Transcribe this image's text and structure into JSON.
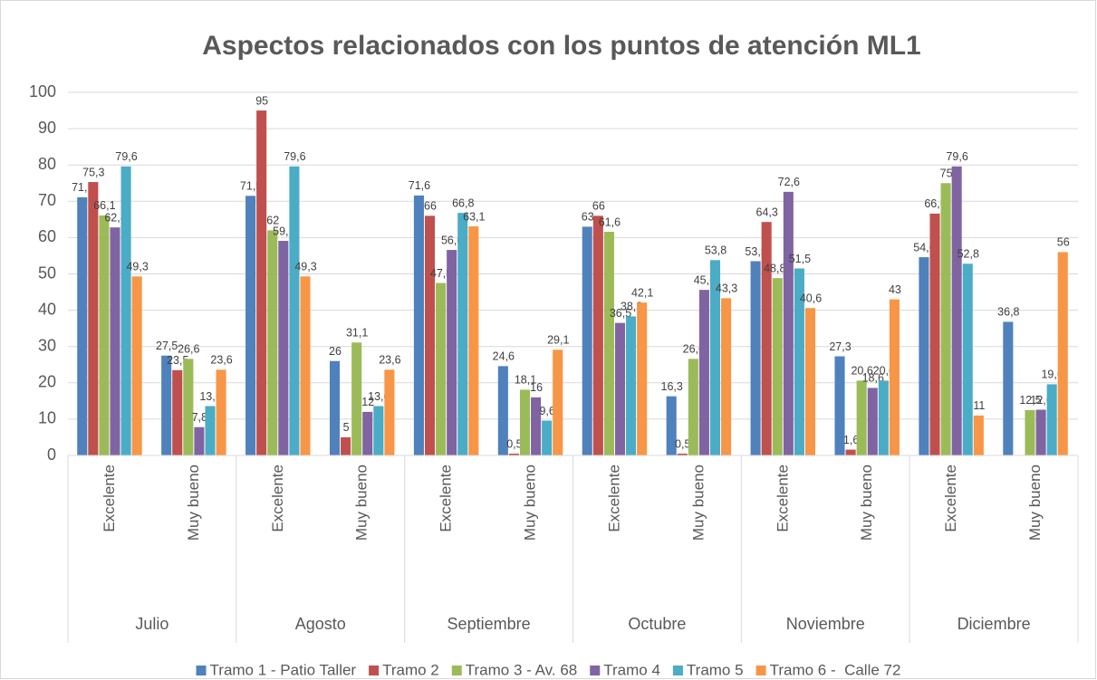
{
  "chart_data": {
    "type": "bar",
    "title": "Aspectos relacionados con los puntos de atención ML1",
    "categories": [
      "Excelente",
      "Muy bueno",
      "Excelente",
      "Muy bueno",
      "Excelente",
      "Muy bueno",
      "Excelente",
      "Muy bueno",
      "Excelente",
      "Muy bueno",
      "Excelente",
      "Muy bueno"
    ],
    "groups": [
      "Julio",
      "Agosto",
      "Septiembre",
      "Octubre",
      "Noviembre",
      "Diciembre"
    ],
    "ylim": [
      0,
      100
    ],
    "yticks": [
      0,
      10,
      20,
      30,
      40,
      50,
      60,
      70,
      80,
      90,
      100
    ],
    "grid": true,
    "legend": "bottom",
    "series": [
      {
        "name": "Tramo 1 - Patio Taller",
        "color": "#4f81bd",
        "values": [
          71.1,
          27.5,
          71.5,
          26,
          71.6,
          24.6,
          63,
          16.3,
          53.5,
          27.3,
          54.6,
          36.8
        ],
        "value_labels": [
          "71,1",
          "27,5",
          "71,5",
          "26",
          "71,6",
          "24,6",
          "63",
          "16,3",
          "53,5",
          "27,3",
          "54,6",
          "36,8"
        ]
      },
      {
        "name": "Tramo 2",
        "color": "#c0504d",
        "values": [
          75.3,
          23.5,
          95,
          5,
          66,
          0.5,
          66,
          0.5,
          64.3,
          1.6,
          66.6,
          null
        ],
        "value_labels": [
          "75,3",
          "23,5",
          "95",
          "5",
          "66",
          "0,5",
          "66",
          "0,5",
          "64,3",
          "1,6",
          "66,6",
          null
        ]
      },
      {
        "name": "Tramo 3 - Av. 68",
        "color": "#9bbb59",
        "values": [
          66.1,
          26.6,
          62,
          31.1,
          47.5,
          18.1,
          61.6,
          26.6,
          48.83,
          20.6,
          75,
          12.5
        ],
        "value_labels": [
          "66,1",
          "26,6",
          "62",
          "31,1",
          "47,5",
          "18,1",
          "61,6",
          "26,6",
          "48,83",
          "20,6",
          "75",
          "12,5"
        ]
      },
      {
        "name": "Tramo 4",
        "color": "#8064a2",
        "values": [
          62.8,
          7.8,
          59.1,
          12,
          56.6,
          16,
          36.5,
          45.6,
          72.6,
          18.6,
          79.6,
          12.6
        ],
        "value_labels": [
          "62,8",
          "7,8",
          "59,1",
          "12",
          "56,6",
          "16",
          "36,5",
          "45,6",
          "72,6",
          "18,6",
          "79,6",
          "12,6"
        ]
      },
      {
        "name": "Tramo 5",
        "color": "#4bacc6",
        "values": [
          79.6,
          13.6,
          79.6,
          13.6,
          66.8,
          9.6,
          38.3,
          53.8,
          51.5,
          20.6,
          52.8,
          19.6
        ],
        "value_labels": [
          "79,6",
          "13,6",
          "79,6",
          "13,6",
          "66,8",
          "9,6",
          "38,3",
          "53,8",
          "51,5",
          "20,6",
          "52,8",
          "19,6"
        ]
      },
      {
        "name": "Tramo 6 -  Calle 72",
        "color": "#f79646",
        "values": [
          49.3,
          23.6,
          49.3,
          23.6,
          63.1,
          29.1,
          42.1,
          43.3,
          40.6,
          43,
          11,
          56
        ],
        "value_labels": [
          "49,3",
          "23,6",
          "49,3",
          "23,6",
          "63,1",
          "29,1",
          "42,1",
          "43,3",
          "40,6",
          "43",
          "11",
          "56"
        ]
      }
    ]
  }
}
